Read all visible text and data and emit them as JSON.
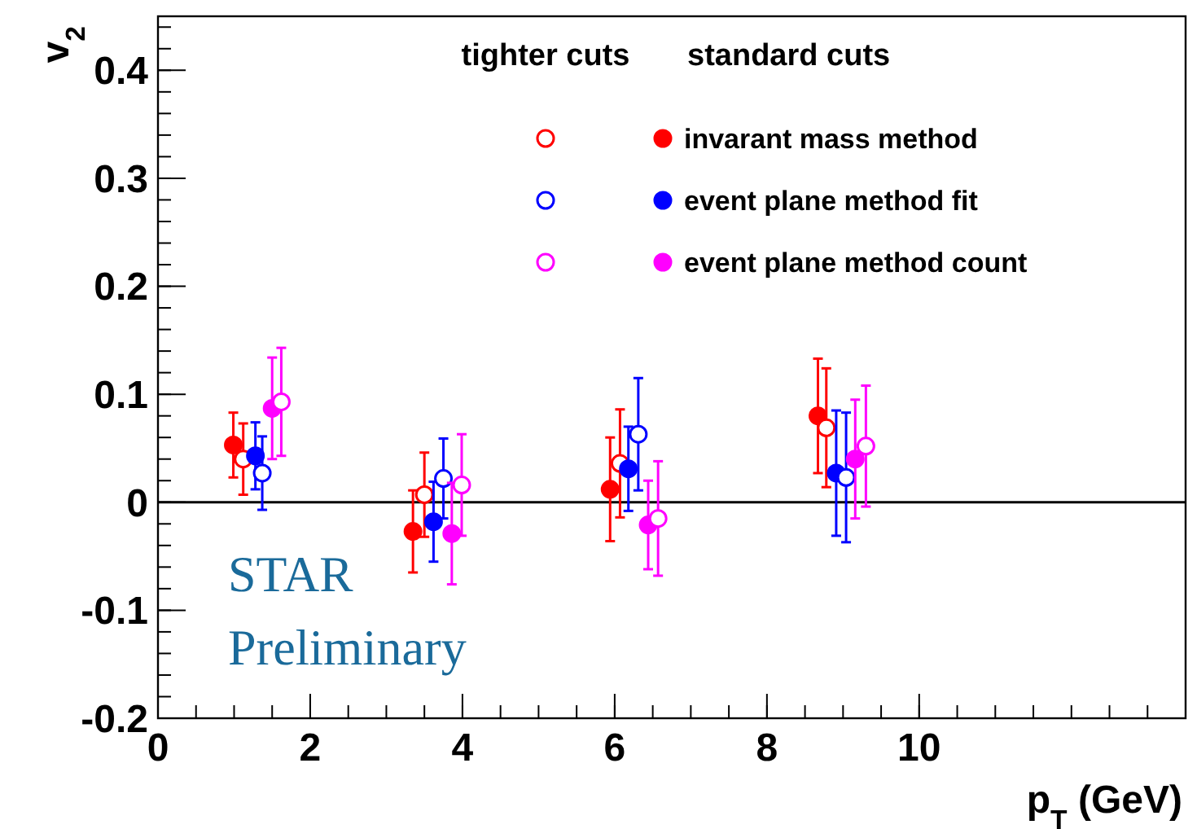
{
  "chart_data": {
    "type": "scatter",
    "xlabel": "p$_{T}$ (GeV)",
    "ylabel": "v$_{2}$",
    "xlim": [
      0,
      13.5
    ],
    "xticks": [
      0,
      2,
      4,
      6,
      8,
      10
    ],
    "ylim": [
      -0.2,
      0.45
    ],
    "yticks": [
      -0.2,
      -0.1,
      0,
      0.1,
      0.2,
      0.3,
      0.4
    ],
    "grid": false,
    "legend": "top right",
    "ref_lines": [
      {
        "axis": "y",
        "value": 0,
        "color": "#000000"
      }
    ],
    "annotations": [
      "tighter cuts",
      "standard cuts",
      "STAR",
      "Preliminary"
    ],
    "series": [
      {
        "name": "invarant mass method",
        "color": "#ff0000",
        "marker": "circle",
        "x": [
          0.99,
          3.35,
          5.94,
          8.67
        ],
        "values": [
          0.053,
          -0.027,
          0.012,
          0.08
        ],
        "errors": [
          0.03,
          0.038,
          0.048,
          0.053
        ]
      },
      {
        "color": "#ff0000",
        "marker": "circle-open",
        "x": [
          1.12,
          3.5,
          6.07,
          8.78
        ],
        "values": [
          0.04,
          0.007,
          0.036,
          0.069
        ],
        "errors": [
          0.033,
          0.039,
          0.05,
          0.055
        ]
      },
      {
        "name": "event plane method fit",
        "color": "#0000ff",
        "marker": "circle",
        "x": [
          1.28,
          3.62,
          6.18,
          8.91
        ],
        "values": [
          0.043,
          -0.018,
          0.031,
          0.027
        ],
        "errors": [
          0.031,
          0.037,
          0.039,
          0.058
        ]
      },
      {
        "color": "#0000ff",
        "marker": "circle-open",
        "x": [
          1.37,
          3.75,
          6.31,
          9.04
        ],
        "values": [
          0.027,
          0.022,
          0.063,
          0.023
        ],
        "errors": [
          0.034,
          0.037,
          0.052,
          0.06
        ]
      },
      {
        "name": "event plane method count",
        "color": "#ff00ff",
        "marker": "circle",
        "x": [
          1.5,
          3.86,
          6.44,
          9.16
        ],
        "values": [
          0.087,
          -0.029,
          -0.021,
          0.04
        ],
        "errors": [
          0.047,
          0.047,
          0.041,
          0.055
        ]
      },
      {
        "color": "#ff00ff",
        "marker": "circle-open",
        "x": [
          1.62,
          3.99,
          6.57,
          9.3
        ],
        "values": [
          0.093,
          0.016,
          -0.015,
          0.052
        ],
        "errors": [
          0.05,
          0.047,
          0.053,
          0.056
        ]
      }
    ]
  }
}
